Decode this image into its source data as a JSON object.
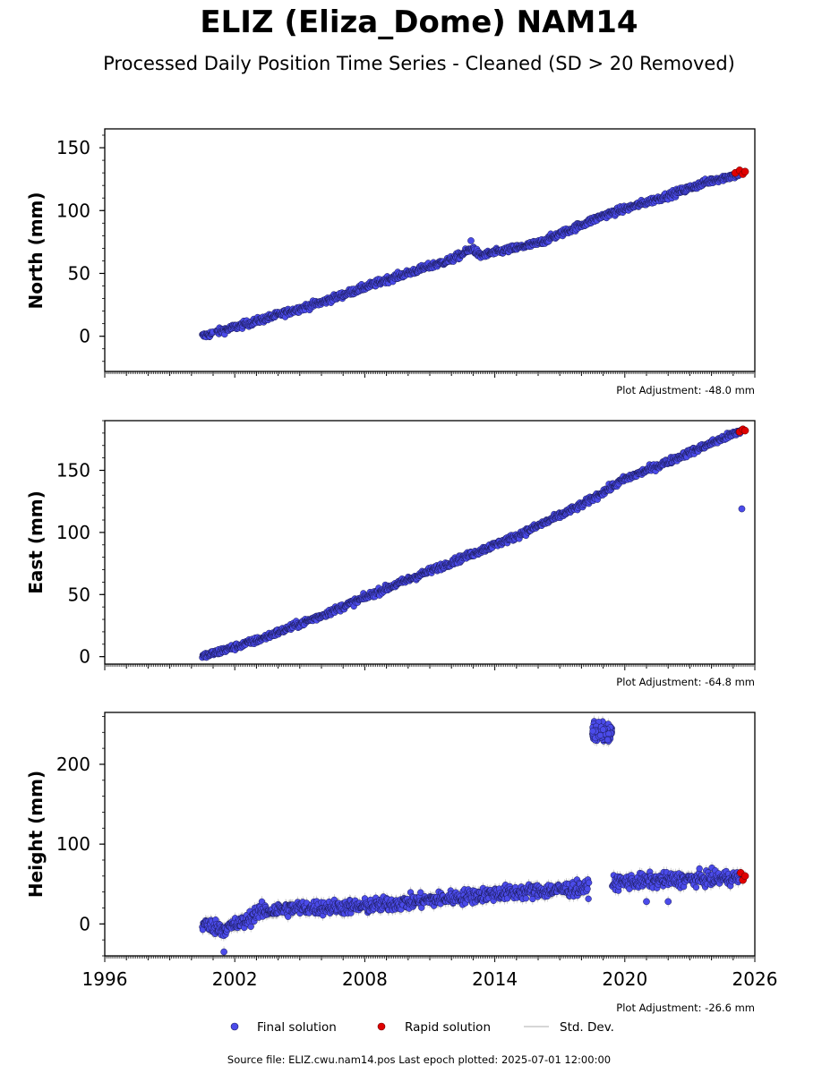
{
  "title": "ELIZ (Eliza_Dome) NAM14",
  "subtitle": "Processed Daily Position Time Series - Cleaned (SD > 20 Removed)",
  "source_text": "Source file: ELIZ.cwu.nam14.pos  Last epoch plotted: 2025-07-01 12:00:00",
  "legend": {
    "final": "Final solution",
    "rapid": "Rapid solution",
    "std": "Std. Dev."
  },
  "colors": {
    "final": "#4b4bea",
    "final_edge": "#1a1a55",
    "rapid": "#e00000",
    "std": "#c8c8c8"
  },
  "chart_data": [
    {
      "type": "scatter",
      "ylabel": "North (mm)",
      "adjustment": "Plot Adjustment: -48.0 mm",
      "xlim": [
        1996,
        2026
      ],
      "ylim": [
        -28,
        165
      ],
      "yticks": [
        0,
        50,
        100,
        150
      ],
      "grid": false,
      "final_trend": [
        [
          2000.5,
          0
        ],
        [
          2003,
          12
        ],
        [
          2006,
          27
        ],
        [
          2009,
          45
        ],
        [
          2012,
          61
        ],
        [
          2013.0,
          70
        ],
        [
          2013.3,
          64
        ],
        [
          2016,
          74
        ],
        [
          2019,
          96
        ],
        [
          2022,
          112
        ],
        [
          2024,
          124
        ],
        [
          2025.3,
          129
        ]
      ],
      "outliers": [
        [
          2012.9,
          76
        ]
      ],
      "rapid": [
        [
          2025.1,
          130
        ],
        [
          2025.3,
          132
        ],
        [
          2025.45,
          129
        ],
        [
          2025.55,
          131
        ]
      ]
    },
    {
      "type": "scatter",
      "ylabel": "East (mm)",
      "adjustment": "Plot Adjustment: -64.8 mm",
      "xlim": [
        1996,
        2026
      ],
      "ylim": [
        -6,
        190
      ],
      "yticks": [
        0,
        50,
        100,
        150
      ],
      "grid": false,
      "final_trend": [
        [
          2000.5,
          0
        ],
        [
          2003,
          13
        ],
        [
          2006,
          33
        ],
        [
          2009,
          55
        ],
        [
          2012,
          76
        ],
        [
          2015,
          97
        ],
        [
          2018,
          122
        ],
        [
          2020,
          143
        ],
        [
          2022,
          157
        ],
        [
          2024,
          172
        ],
        [
          2025.4,
          182
        ]
      ],
      "outliers": [
        [
          2025.4,
          119
        ]
      ],
      "rapid": [
        [
          2025.3,
          181
        ],
        [
          2025.45,
          183
        ],
        [
          2025.55,
          182
        ]
      ]
    },
    {
      "type": "scatter",
      "ylabel": "Height (mm)",
      "adjustment": "Plot Adjustment: -26.6 mm",
      "xlim": [
        1996,
        2026
      ],
      "ylim": [
        -40,
        265
      ],
      "yticks": [
        0,
        100,
        200
      ],
      "xticks": [
        1996,
        2002,
        2008,
        2014,
        2020,
        2026
      ],
      "grid": false,
      "final_trend": [
        [
          2000.5,
          0
        ],
        [
          2001.5,
          -6
        ],
        [
          2002.6,
          4
        ],
        [
          2003,
          15
        ],
        [
          2005,
          20
        ],
        [
          2008,
          22
        ],
        [
          2011,
          30
        ],
        [
          2014,
          38
        ],
        [
          2018.3,
          45
        ],
        [
          2019.4,
          52
        ],
        [
          2022,
          55
        ],
        [
          2025.3,
          58
        ]
      ],
      "final_cluster": {
        "x": [
          2018.5,
          2019.4
        ],
        "y": [
          240,
          10
        ]
      },
      "outliers": [
        [
          2001.5,
          -35
        ],
        [
          2021,
          28
        ],
        [
          2022,
          28
        ]
      ],
      "rapid": [
        [
          2025.35,
          64
        ],
        [
          2025.45,
          55
        ],
        [
          2025.55,
          60
        ]
      ]
    }
  ]
}
